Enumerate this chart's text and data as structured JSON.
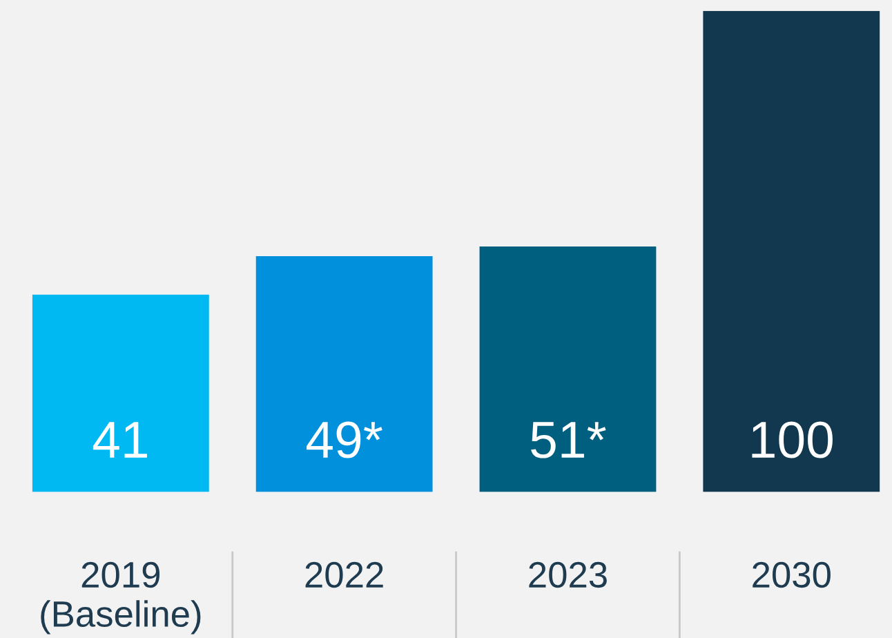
{
  "chart_data": {
    "type": "bar",
    "categories": [
      "2019\n(Baseline)",
      "2022",
      "2023",
      "2030"
    ],
    "values": [
      41,
      49,
      51,
      100
    ],
    "colors": [
      "#00b9f2",
      "#0090dc",
      "#005e7e",
      "#12384f"
    ],
    "value_labels": [
      "41",
      "49*",
      "51*",
      "100"
    ],
    "grid": false,
    "legend": false
  }
}
